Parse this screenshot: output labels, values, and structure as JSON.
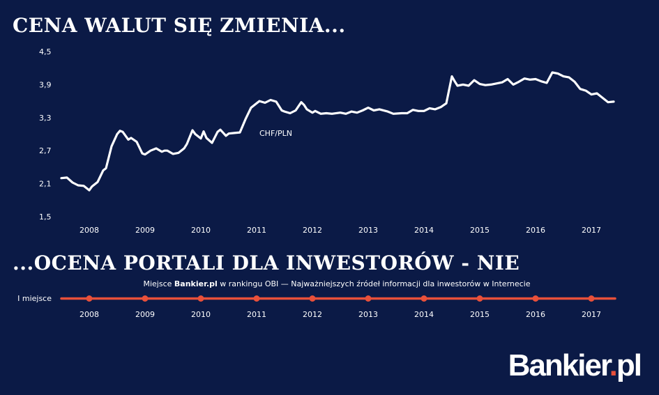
{
  "headlines": {
    "top": "CENA WALUT SIĘ ZMIENIA...",
    "bottom": "...OCENA PORTALI DLA INWESTORÓW - NIE"
  },
  "ranking": {
    "caption_prefix": "Miejsce ",
    "caption_bold": "Bankier.pl",
    "caption_suffix": " w rankingu OBI — Najważniejszych źródeł informacji dla inwestorów w Internecie",
    "y_label": "I miejsce",
    "line_color": "#e8503a"
  },
  "logo": {
    "name": "Bankier",
    "dot": ".",
    "tld": "pl",
    "accent": "#e8503a"
  },
  "colors": {
    "background": "#0b1a46",
    "line": "#ffffff",
    "accent": "#e8503a"
  },
  "chart_data": [
    {
      "type": "line",
      "title": "",
      "xlabel": "",
      "ylabel": "",
      "x_tick_labels": [
        "2008",
        "2009",
        "2010",
        "2011",
        "2012",
        "2013",
        "2014",
        "2015",
        "2016",
        "2017"
      ],
      "y_tick_labels": [
        "4,5",
        "3,9",
        "3,3",
        "2,7",
        "2,1",
        "1,5"
      ],
      "ylim": [
        1.5,
        4.5
      ],
      "grid": false,
      "annotations": [
        {
          "text": "CHF/PLN",
          "x": 2011.05,
          "y": 2.97
        }
      ],
      "series": [
        {
          "name": "CHF/PLN",
          "x": [
            2007.5,
            2007.6,
            2007.7,
            2007.8,
            2007.9,
            2008.0,
            2008.05,
            2008.15,
            2008.25,
            2008.3,
            2008.4,
            2008.5,
            2008.55,
            2008.6,
            2008.7,
            2008.75,
            2008.85,
            2008.95,
            2009.0,
            2009.1,
            2009.2,
            2009.3,
            2009.35,
            2009.4,
            2009.5,
            2009.6,
            2009.7,
            2009.75,
            2009.85,
            2009.9,
            2010.0,
            2010.05,
            2010.1,
            2010.2,
            2010.3,
            2010.35,
            2010.45,
            2010.5,
            2010.6,
            2010.7,
            2010.8,
            2010.9,
            2011.0,
            2011.05,
            2011.15,
            2011.25,
            2011.35,
            2011.45,
            2011.5,
            2011.6,
            2011.7,
            2011.8,
            2011.85,
            2011.9,
            2012.0,
            2012.05,
            2012.15,
            2012.25,
            2012.35,
            2012.5,
            2012.6,
            2012.7,
            2012.8,
            2012.9,
            2013.0,
            2013.1,
            2013.2,
            2013.35,
            2013.45,
            2013.6,
            2013.7,
            2013.8,
            2013.9,
            2014.0,
            2014.1,
            2014.2,
            2014.3,
            2014.4,
            2014.5,
            2014.55,
            2014.6,
            2014.7,
            2014.8,
            2014.9,
            2015.0,
            2015.1,
            2015.2,
            2015.3,
            2015.4,
            2015.5,
            2015.6,
            2015.7,
            2015.8,
            2015.9,
            2016.0,
            2016.1,
            2016.2,
            2016.3,
            2016.4,
            2016.5,
            2016.6,
            2016.7,
            2016.8,
            2016.9,
            2017.0,
            2017.1,
            2017.2,
            2017.3,
            2017.4
          ],
          "values": [
            2.2,
            2.21,
            2.12,
            2.07,
            2.06,
            1.98,
            2.05,
            2.13,
            2.34,
            2.38,
            2.78,
            3.0,
            3.06,
            3.04,
            2.9,
            2.93,
            2.86,
            2.65,
            2.63,
            2.7,
            2.74,
            2.68,
            2.7,
            2.7,
            2.64,
            2.66,
            2.74,
            2.82,
            3.07,
            3.0,
            2.92,
            3.05,
            2.93,
            2.84,
            3.04,
            3.08,
            2.97,
            3.01,
            3.02,
            3.03,
            3.27,
            3.48,
            3.56,
            3.6,
            3.57,
            3.62,
            3.59,
            3.43,
            3.41,
            3.38,
            3.43,
            3.58,
            3.53,
            3.45,
            3.39,
            3.42,
            3.37,
            3.38,
            3.37,
            3.39,
            3.37,
            3.41,
            3.39,
            3.43,
            3.48,
            3.43,
            3.45,
            3.41,
            3.37,
            3.38,
            3.38,
            3.44,
            3.42,
            3.42,
            3.47,
            3.45,
            3.49,
            3.56,
            4.05,
            3.96,
            3.88,
            3.9,
            3.88,
            3.98,
            3.91,
            3.89,
            3.9,
            3.92,
            3.94,
            4.0,
            3.9,
            3.95,
            4.01,
            3.99,
            4.0,
            3.96,
            3.93,
            4.12,
            4.1,
            4.05,
            4.03,
            3.95,
            3.82,
            3.79,
            3.72,
            3.74,
            3.66,
            3.58,
            3.59
          ]
        }
      ]
    },
    {
      "type": "line",
      "title": "",
      "xlabel": "",
      "ylabel": "",
      "x_tick_labels": [
        "2008",
        "2009",
        "2010",
        "2011",
        "2012",
        "2013",
        "2014",
        "2015",
        "2016",
        "2017"
      ],
      "y_tick_labels": [
        "I miejsce"
      ],
      "series": [
        {
          "name": "",
          "x": [
            2008,
            2009,
            2010,
            2011,
            2012,
            2013,
            2014,
            2015,
            2016,
            2017
          ],
          "values": [
            1,
            1,
            1,
            1,
            1,
            1,
            1,
            1,
            1,
            1
          ]
        }
      ]
    }
  ]
}
